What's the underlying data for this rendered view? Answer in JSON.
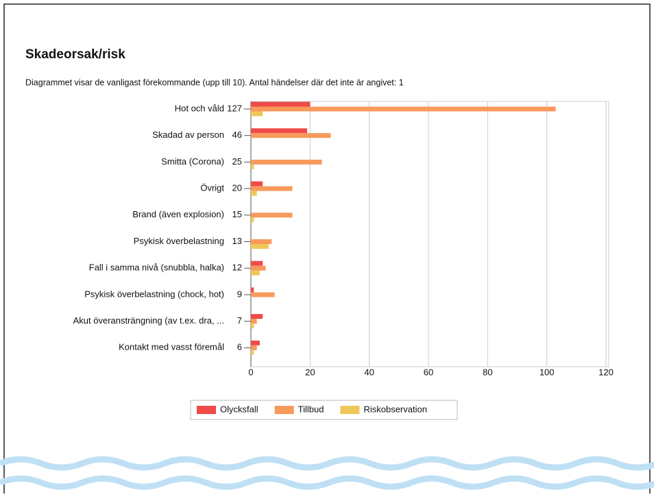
{
  "chart_data": {
    "type": "hbar",
    "title": "Skadeorsak/risk",
    "subtitle": "Diagrammet visar de vanligast förekommande (upp till 10). Antal händelser där det inte är angivet: 1",
    "categories": [
      "Hot och våld",
      "Skadad av person",
      "Smitta (Corona)",
      "Övrigt",
      "Brand (även explosion)",
      "Psykisk överbelastning",
      "Fall i samma nivå (snubbla, halka)",
      "Psykisk överbelastning (chock, hot)",
      "Akut överansträngning (av t.ex. dra, ...",
      "Kontakt med vasst föremål"
    ],
    "category_totals": [
      127,
      46,
      25,
      20,
      15,
      13,
      12,
      9,
      7,
      6
    ],
    "series": [
      {
        "name": "Olycksfall",
        "color": "#f04a4a",
        "values": [
          20,
          19,
          0,
          4,
          0,
          0,
          4,
          1,
          4,
          3
        ]
      },
      {
        "name": "Tillbud",
        "color": "#f79a5c",
        "values": [
          103,
          27,
          24,
          14,
          14,
          7,
          5,
          8,
          2,
          2
        ]
      },
      {
        "name": "Riskobservation",
        "color": "#f0c75a",
        "values": [
          4,
          0,
          1,
          2,
          1,
          6,
          3,
          0,
          1,
          1
        ]
      }
    ],
    "xlim": [
      0,
      120
    ],
    "xticks": [
      0,
      20,
      40,
      60,
      80,
      100,
      120
    ],
    "grid": true,
    "legend": "bottom"
  }
}
